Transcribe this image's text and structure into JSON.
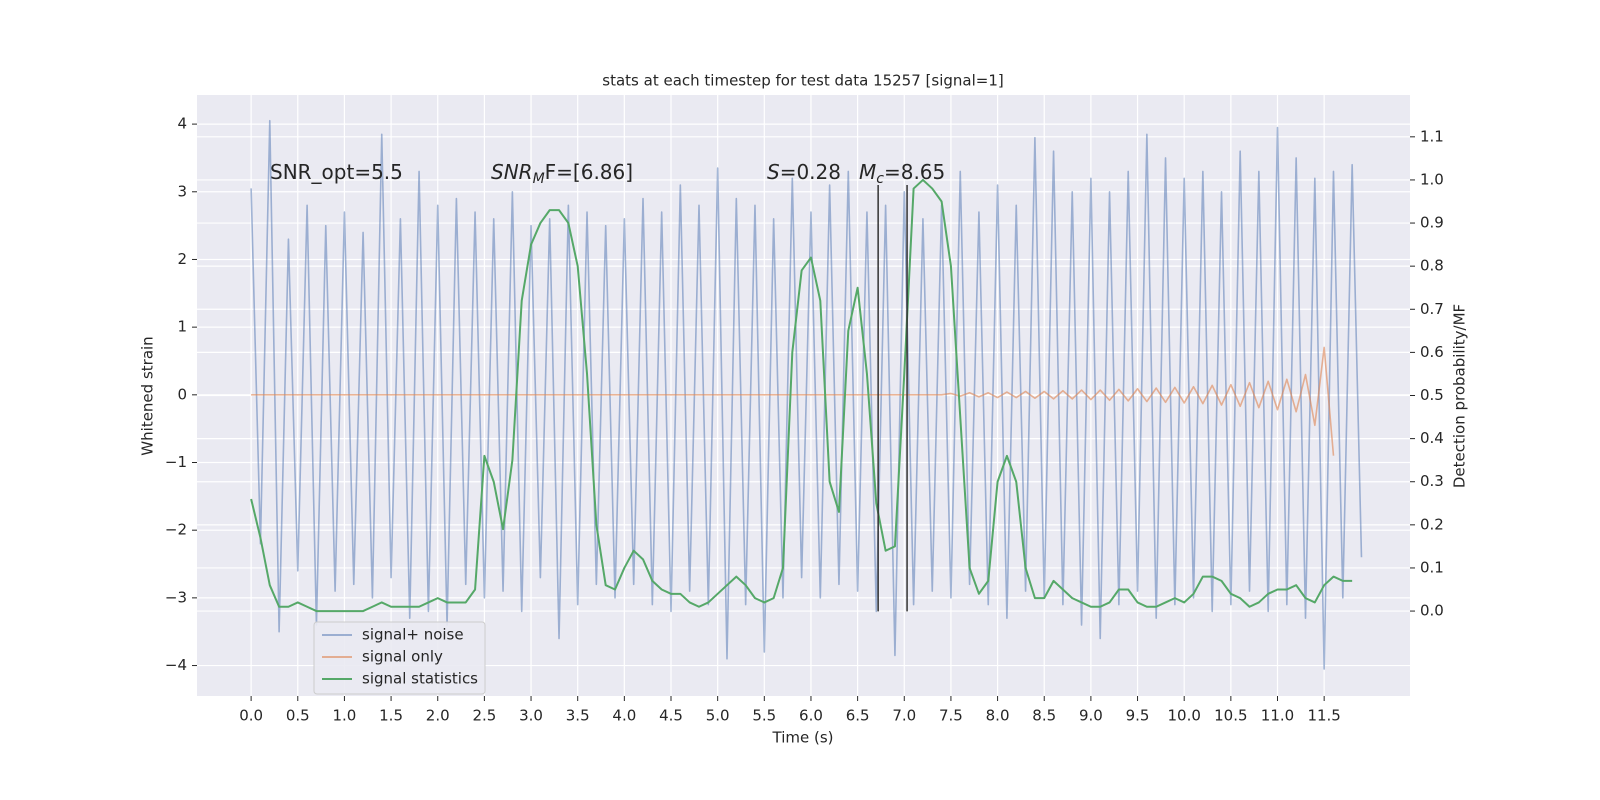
{
  "chart_data": {
    "type": "line",
    "title": "stats at each timestep for test data 15257 [signal=1]",
    "xlabel": "Time (s)",
    "ylabel": "Whitened strain",
    "y2label": "Detection probability/MF",
    "annotations": [
      [
        "SNR_opt=5.5"
      ],
      [
        "SNR",
        "M",
        "F=[6.86]"
      ],
      [
        "S",
        "=0.28"
      ],
      [
        "M",
        "c",
        "=8.65"
      ]
    ],
    "x": [
      0.0,
      0.1,
      0.2,
      0.3,
      0.4,
      0.5,
      0.6,
      0.7,
      0.8,
      0.9,
      1.0,
      1.1,
      1.2,
      1.3,
      1.4,
      1.5,
      1.6,
      1.7,
      1.8,
      1.9,
      2.0,
      2.1,
      2.2,
      2.3,
      2.4,
      2.5,
      2.6,
      2.7,
      2.8,
      2.9,
      3.0,
      3.1,
      3.2,
      3.3,
      3.4,
      3.5,
      3.6,
      3.7,
      3.8,
      3.9,
      4.0,
      4.1,
      4.2,
      4.3,
      4.4,
      4.5,
      4.6,
      4.7,
      4.8,
      4.9,
      5.0,
      5.1,
      5.2,
      5.3,
      5.4,
      5.5,
      5.6,
      5.7,
      5.8,
      5.9,
      6.0,
      6.1,
      6.2,
      6.3,
      6.4,
      6.5,
      6.6,
      6.7,
      6.8,
      6.9,
      7.0,
      7.1,
      7.2,
      7.3,
      7.4,
      7.5,
      7.6,
      7.7,
      7.8,
      7.9,
      8.0,
      8.1,
      8.2,
      8.3,
      8.4,
      8.5,
      8.6,
      8.7,
      8.8,
      8.9,
      9.0,
      9.1,
      9.2,
      9.3,
      9.4,
      9.5,
      9.6,
      9.7,
      9.8,
      9.9,
      10.0,
      10.1,
      10.2,
      10.3,
      10.4,
      10.5,
      10.6,
      10.7,
      10.8,
      10.9,
      11.0,
      11.1,
      11.2,
      11.3,
      11.4,
      11.5,
      11.6,
      11.7,
      11.8,
      11.9
    ],
    "series": [
      {
        "name": "signal+ noise",
        "color": "#4c72b0",
        "opacity": 0.5,
        "axis": "y",
        "values": [
          3.05,
          -2.2,
          4.05,
          -3.5,
          2.3,
          -2.6,
          2.8,
          -3.4,
          2.5,
          -2.9,
          2.7,
          -2.8,
          2.4,
          -3.0,
          3.85,
          -2.7,
          2.6,
          -3.3,
          3.3,
          -3.2,
          2.8,
          -3.4,
          2.9,
          -2.8,
          2.7,
          -3.0,
          2.6,
          -2.9,
          3.0,
          -3.2,
          2.5,
          -2.7,
          2.6,
          -3.6,
          2.8,
          -3.1,
          2.7,
          -2.8,
          2.5,
          -3.0,
          2.6,
          -2.8,
          2.9,
          -3.1,
          2.7,
          -3.2,
          3.1,
          -2.9,
          2.8,
          -3.1,
          3.35,
          -3.9,
          2.9,
          -3.1,
          2.8,
          -3.8,
          2.6,
          -3.0,
          3.2,
          -2.7,
          2.7,
          -3.0,
          3.1,
          -2.8,
          3.3,
          -2.9,
          2.7,
          -3.2,
          2.8,
          -3.85,
          3.0,
          -3.1,
          2.6,
          -2.9,
          2.8,
          -3.0,
          3.3,
          -2.8,
          2.7,
          -3.1,
          3.1,
          -3.3,
          2.8,
          -2.9,
          3.8,
          -3.0,
          3.6,
          -3.1,
          3.0,
          -3.4,
          3.2,
          -3.6,
          3.0,
          -3.1,
          3.3,
          -2.9,
          3.85,
          -3.3,
          3.5,
          -3.1,
          3.2,
          -3.0,
          3.3,
          -3.2,
          3.0,
          -3.1,
          3.6,
          -2.9,
          3.3,
          -3.2,
          3.95,
          -3.1,
          3.5,
          -3.3,
          3.2,
          -4.05,
          3.3,
          -3.0,
          3.4,
          -2.4
        ]
      },
      {
        "name": "signal only",
        "color": "#dd8452",
        "opacity": 0.6,
        "axis": "y",
        "values": [
          0,
          0,
          0,
          0,
          0,
          0,
          0,
          0,
          0,
          0,
          0,
          0,
          0,
          0,
          0,
          0,
          0,
          0,
          0,
          0,
          0,
          0,
          0,
          0,
          0,
          0,
          0,
          0,
          0,
          0,
          0,
          0,
          0,
          0,
          0,
          0,
          0,
          0,
          0,
          0,
          0,
          0,
          0,
          0,
          0,
          0,
          0,
          0,
          0,
          0,
          0,
          0,
          0,
          0,
          0,
          0,
          0,
          0,
          0,
          0,
          0,
          0,
          0,
          0,
          0,
          0,
          0,
          0,
          0,
          0,
          0,
          0,
          0,
          0,
          0,
          0.02,
          -0.02,
          0.03,
          -0.03,
          0.03,
          -0.04,
          0.04,
          -0.04,
          0.05,
          -0.05,
          0.05,
          -0.06,
          0.06,
          -0.06,
          0.07,
          -0.07,
          0.07,
          -0.08,
          0.08,
          -0.09,
          0.09,
          -0.1,
          0.1,
          -0.11,
          0.11,
          -0.12,
          0.12,
          -0.13,
          0.14,
          -0.15,
          0.15,
          -0.17,
          0.18,
          -0.19,
          0.2,
          -0.22,
          0.23,
          -0.25,
          0.3,
          -0.45,
          0.7,
          -0.9,
          null,
          null,
          null
        ]
      },
      {
        "name": "signal statistics",
        "color": "#55a868",
        "opacity": 1,
        "axis": "y2",
        "values": [
          0.26,
          0.17,
          0.06,
          0.01,
          0.01,
          0.02,
          0.01,
          0.0,
          0.0,
          0.0,
          0.0,
          0.0,
          0.0,
          0.01,
          0.02,
          0.01,
          0.01,
          0.01,
          0.01,
          0.02,
          0.03,
          0.02,
          0.02,
          0.02,
          0.05,
          0.36,
          0.3,
          0.19,
          0.35,
          0.72,
          0.85,
          0.9,
          0.93,
          0.93,
          0.9,
          0.8,
          0.55,
          0.2,
          0.06,
          0.05,
          0.1,
          0.14,
          0.12,
          0.07,
          0.05,
          0.04,
          0.04,
          0.02,
          0.01,
          0.02,
          0.04,
          0.06,
          0.08,
          0.06,
          0.03,
          0.02,
          0.03,
          0.1,
          0.6,
          0.79,
          0.82,
          0.72,
          0.3,
          0.23,
          0.65,
          0.75,
          0.55,
          0.25,
          0.14,
          0.15,
          0.55,
          0.98,
          1.0,
          0.98,
          0.95,
          0.8,
          0.45,
          0.1,
          0.04,
          0.07,
          0.3,
          0.36,
          0.3,
          0.1,
          0.03,
          0.03,
          0.07,
          0.05,
          0.03,
          0.02,
          0.01,
          0.01,
          0.02,
          0.05,
          0.05,
          0.02,
          0.01,
          0.01,
          0.02,
          0.03,
          0.02,
          0.04,
          0.08,
          0.08,
          0.07,
          0.04,
          0.03,
          0.01,
          0.02,
          0.04,
          0.05,
          0.05,
          0.06,
          0.03,
          0.02,
          0.06,
          0.08,
          0.07,
          0.07,
          null
        ]
      }
    ],
    "vlines": {
      "x": [
        6.72,
        7.03
      ],
      "ymin": -3.2,
      "ymax": 3.1,
      "color": "#333333"
    },
    "xlim": [
      -0.58,
      12.42
    ],
    "ylim": [
      -4.45,
      4.43
    ],
    "y2lim": [
      -0.197,
      1.197
    ],
    "xticks": [
      {
        "value": 0,
        "label": "0.0"
      },
      {
        "value": 0.5,
        "label": "0.5"
      },
      {
        "value": 1,
        "label": "1.0"
      },
      {
        "value": 1.5,
        "label": "1.5"
      },
      {
        "value": 2,
        "label": "2.0"
      },
      {
        "value": 2.5,
        "label": "2.5"
      },
      {
        "value": 3,
        "label": "3.0"
      },
      {
        "value": 3.5,
        "label": "3.5"
      },
      {
        "value": 4,
        "label": "4.0"
      },
      {
        "value": 4.5,
        "label": "4.5"
      },
      {
        "value": 5,
        "label": "5.0"
      },
      {
        "value": 5.5,
        "label": "5.5"
      },
      {
        "value": 6,
        "label": "6.0"
      },
      {
        "value": 6.5,
        "label": "6.5"
      },
      {
        "value": 7,
        "label": "7.0"
      },
      {
        "value": 7.5,
        "label": "7.5"
      },
      {
        "value": 8,
        "label": "8.0"
      },
      {
        "value": 8.5,
        "label": "8.5"
      },
      {
        "value": 9,
        "label": "9.0"
      },
      {
        "value": 9.5,
        "label": "9.5"
      },
      {
        "value": 10,
        "label": "10.0"
      },
      {
        "value": 10.5,
        "label": "10.5"
      },
      {
        "value": 11,
        "label": "11.0"
      },
      {
        "value": 11.5,
        "label": "11.5"
      }
    ],
    "yticks": [
      {
        "value": -4,
        "label": "−4"
      },
      {
        "value": -3,
        "label": "−3"
      },
      {
        "value": -2,
        "label": "−2"
      },
      {
        "value": -1,
        "label": "−1"
      },
      0,
      1,
      2,
      3,
      4
    ],
    "y2ticks": [
      {
        "value": 0,
        "label": "0.0"
      },
      0.1,
      0.2,
      0.3,
      0.4,
      0.5,
      0.6,
      0.7,
      0.8,
      0.9,
      {
        "value": 1,
        "label": "1.0"
      },
      1.1
    ],
    "grid": true,
    "background": "#eaeaf2",
    "legend": "lower left"
  }
}
